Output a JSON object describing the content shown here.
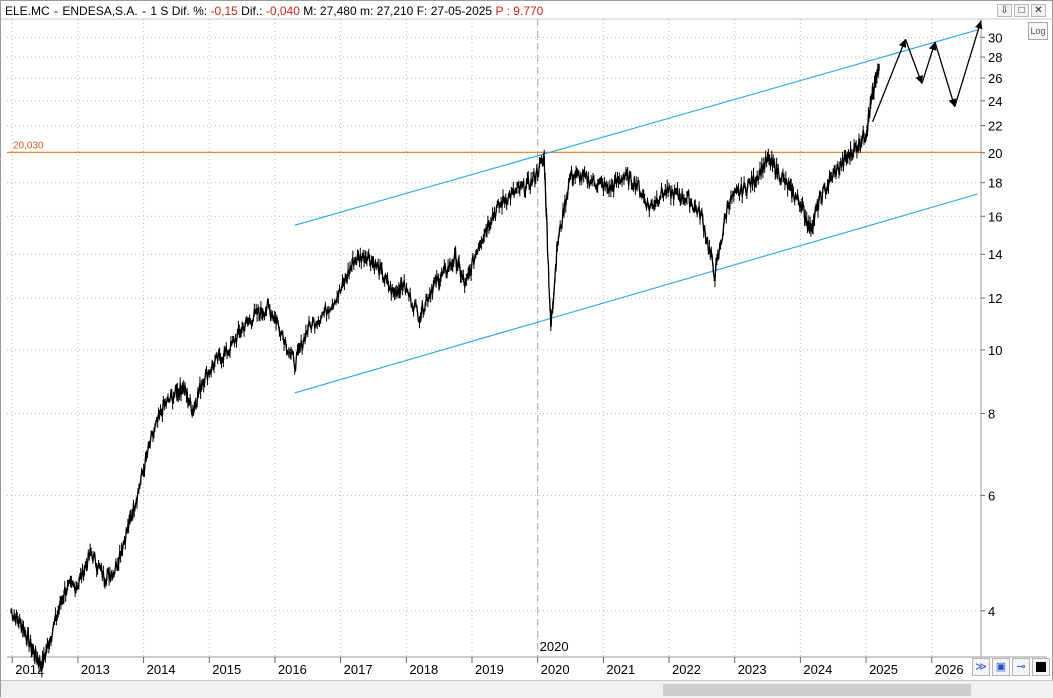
{
  "header": {
    "symbol": "ELE.MC",
    "name": "ENDESA,S.A.",
    "timeframe": "1 S",
    "dif_pct_label": "Dif. %:",
    "dif_pct_value": "-0,15",
    "dif_label": "Dif.:",
    "dif_value": "-0,040",
    "max_label": "M:",
    "max_value": "27,480",
    "min_label": "m:",
    "min_value": "27,210",
    "date_label": "F:",
    "date_value": "27-05-2025",
    "p_label": "P :",
    "p_value": "9.770"
  },
  "window_controls": [
    "⇩",
    "□",
    "✕"
  ],
  "log_button": "Log",
  "tool_icons": [
    "double-chevron-icon",
    "save-icon",
    "pin-icon",
    "color-swatch-icon"
  ],
  "colors": {
    "price": "#000000",
    "channel": "#29a8e0",
    "horizontal_level": "#e07b20",
    "level_label": "#d85a1a",
    "grid": "#b8b8b8"
  },
  "chart_data": {
    "type": "line",
    "scale": "log",
    "ylim": [
      3.4,
      32
    ],
    "y_ticks": [
      4,
      6,
      8,
      10,
      12,
      14,
      16,
      18,
      20,
      22,
      24,
      26,
      28,
      30
    ],
    "x_labels": [
      "2012",
      "2013",
      "2014",
      "2015",
      "2016",
      "2017",
      "2018",
      "2019",
      "2020",
      "2021",
      "2022",
      "2023",
      "2024",
      "2025",
      "2026"
    ],
    "vertical_marker": "2020",
    "horizontal_level": {
      "value": 20.03,
      "label": "20,030"
    },
    "series": [
      {
        "x": [
          2011.98,
          2012.15,
          2012.3,
          2012.45,
          2012.6,
          2012.8,
          2013.0,
          2013.2,
          2013.4,
          2013.55,
          2013.75,
          2013.9,
          2014.1,
          2014.3,
          2014.5,
          2014.6,
          2014.75,
          2014.9,
          2015.1,
          2015.3,
          2015.5,
          2015.7,
          2015.9,
          2016.05,
          2016.3,
          2016.5,
          2016.75,
          2017.0,
          2017.2,
          2017.4,
          2017.6,
          2017.8,
          2017.95,
          2018.2,
          2018.4,
          2018.55,
          2018.75,
          2018.9,
          2019.1,
          2019.3,
          2019.5,
          2019.7,
          2019.9,
          2020.1,
          2020.2,
          2020.3,
          2020.5,
          2020.7,
          2020.9,
          2021.1,
          2021.3,
          2021.5,
          2021.7,
          2021.9,
          2022.1,
          2022.3,
          2022.5,
          2022.7,
          2022.9,
          2023.1,
          2023.3,
          2023.5,
          2023.65,
          2023.85,
          2024.0,
          2024.15,
          2024.3,
          2024.5,
          2024.7,
          2024.85,
          2025.0,
          2025.1,
          2025.2
        ],
        "y": [
          4.0,
          3.8,
          3.5,
          3.3,
          3.7,
          4.3,
          4.4,
          4.9,
          4.5,
          4.6,
          5.3,
          6.0,
          7.2,
          8.2,
          8.6,
          8.8,
          8.1,
          9.0,
          9.6,
          10.0,
          10.8,
          11.3,
          11.6,
          11.0,
          9.5,
          10.8,
          11.4,
          12.3,
          13.7,
          14.0,
          13.2,
          12.2,
          12.6,
          11.3,
          12.5,
          13.0,
          13.8,
          12.5,
          14.5,
          16.0,
          17.0,
          17.5,
          18.0,
          19.6,
          10.8,
          14.5,
          18.5,
          18.3,
          18.0,
          17.6,
          18.4,
          18.0,
          16.5,
          17.4,
          17.3,
          17.0,
          16.0,
          13.0,
          16.8,
          17.5,
          18.2,
          19.5,
          18.8,
          17.5,
          16.8,
          15.3,
          17.0,
          18.5,
          19.6,
          20.4,
          21.5,
          24.5,
          27.0
        ]
      }
    ]
  }
}
